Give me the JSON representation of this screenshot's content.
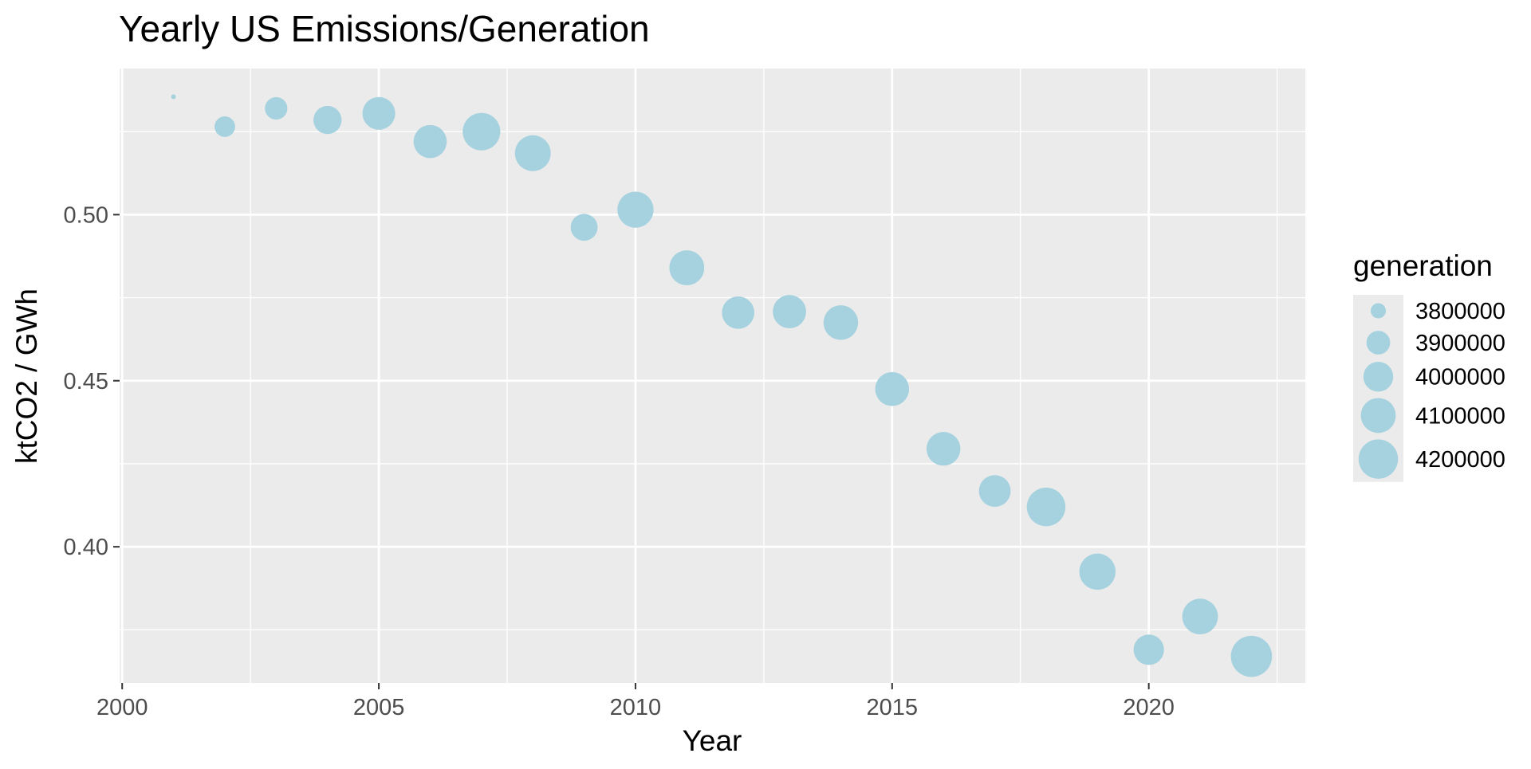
{
  "chart_data": {
    "type": "scatter",
    "title": "Yearly US Emissions/Generation",
    "xlabel": "Year",
    "ylabel": "ktCO2 / GWh",
    "xlim": [
      1999.95,
      2023.05
    ],
    "ylim": [
      0.359,
      0.544
    ],
    "x_ticks": [
      2000,
      2005,
      2010,
      2015,
      2020
    ],
    "x_minor_ticks": [
      2002.5,
      2007.5,
      2012.5,
      2017.5,
      2022.5
    ],
    "y_ticks": [
      0.4,
      0.45,
      0.5
    ],
    "y_tick_labels": [
      "0.40",
      "0.45",
      "0.50"
    ],
    "y_minor_ticks": [
      0.375,
      0.425,
      0.475,
      0.525
    ],
    "grid": true,
    "point_color": "#a6d2e0",
    "panel_color": "#ebebeb",
    "grid_color": "#ffffff",
    "size_variable": "generation",
    "size_range": [
      3737000,
      4250000
    ],
    "points": [
      {
        "x": 2001,
        "y": 0.5355,
        "generation": 3737000
      },
      {
        "x": 2002,
        "y": 0.5265,
        "generation": 3858000
      },
      {
        "x": 2003,
        "y": 0.532,
        "generation": 3883000
      },
      {
        "x": 2004,
        "y": 0.5285,
        "generation": 3970000
      },
      {
        "x": 2005,
        "y": 0.5305,
        "generation": 4055000
      },
      {
        "x": 2006,
        "y": 0.522,
        "generation": 4064000
      },
      {
        "x": 2007,
        "y": 0.525,
        "generation": 4157000
      },
      {
        "x": 2008,
        "y": 0.5185,
        "generation": 4119000
      },
      {
        "x": 2009,
        "y": 0.4962,
        "generation": 3950000
      },
      {
        "x": 2010,
        "y": 0.5015,
        "generation": 4125000
      },
      {
        "x": 2011,
        "y": 0.484,
        "generation": 4100000
      },
      {
        "x": 2012,
        "y": 0.4705,
        "generation": 4048000
      },
      {
        "x": 2013,
        "y": 0.4708,
        "generation": 4066000
      },
      {
        "x": 2014,
        "y": 0.4675,
        "generation": 4093000
      },
      {
        "x": 2015,
        "y": 0.4475,
        "generation": 4078000
      },
      {
        "x": 2016,
        "y": 0.4295,
        "generation": 4077000
      },
      {
        "x": 2017,
        "y": 0.4168,
        "generation": 4035000
      },
      {
        "x": 2018,
        "y": 0.412,
        "generation": 4181000
      },
      {
        "x": 2019,
        "y": 0.3925,
        "generation": 4128000
      },
      {
        "x": 2020,
        "y": 0.369,
        "generation": 4010000
      },
      {
        "x": 2021,
        "y": 0.379,
        "generation": 4116000
      },
      {
        "x": 2022,
        "y": 0.367,
        "generation": 4243000
      }
    ],
    "legend": {
      "title": "generation",
      "placement": "right",
      "entries": [
        {
          "label": "3800000",
          "value": 3800000
        },
        {
          "label": "3900000",
          "value": 3900000
        },
        {
          "label": "4000000",
          "value": 4000000
        },
        {
          "label": "4100000",
          "value": 4100000
        },
        {
          "label": "4200000",
          "value": 4200000
        }
      ]
    }
  }
}
